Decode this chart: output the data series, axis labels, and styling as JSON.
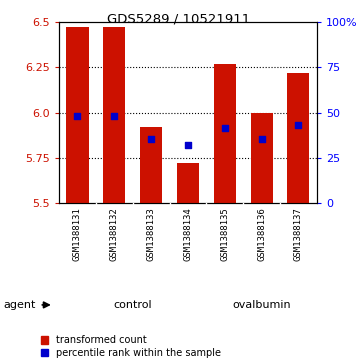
{
  "title": "GDS5289 / 10521911",
  "samples": [
    "GSM1388131",
    "GSM1388132",
    "GSM1388133",
    "GSM1388134",
    "GSM1388135",
    "GSM1388136",
    "GSM1388137"
  ],
  "bar_tops": [
    6.47,
    6.47,
    5.92,
    5.72,
    6.27,
    6.0,
    6.22
  ],
  "bar_base": 5.5,
  "blue_vals": [
    5.98,
    5.98,
    5.855,
    5.82,
    5.915,
    5.855,
    5.932
  ],
  "ylim": [
    5.5,
    6.5
  ],
  "yticks": [
    5.5,
    5.75,
    6.0,
    6.25,
    6.5
  ],
  "right_yticks": [
    0,
    25,
    50,
    75,
    100
  ],
  "right_ylim": [
    0,
    100
  ],
  "bar_color": "#cc1100",
  "blue_color": "#0000cc",
  "control_label": "control",
  "ovalbumin_label": "ovalbumin",
  "agent_label": "agent",
  "legend_bar_label": "transformed count",
  "legend_blue_label": "percentile rank within the sample",
  "bg_color": "#ffffff",
  "group_bar_color": "#90ee90",
  "sample_bg_color": "#d3d3d3",
  "n_control": 4,
  "n_ovalbumin": 3
}
